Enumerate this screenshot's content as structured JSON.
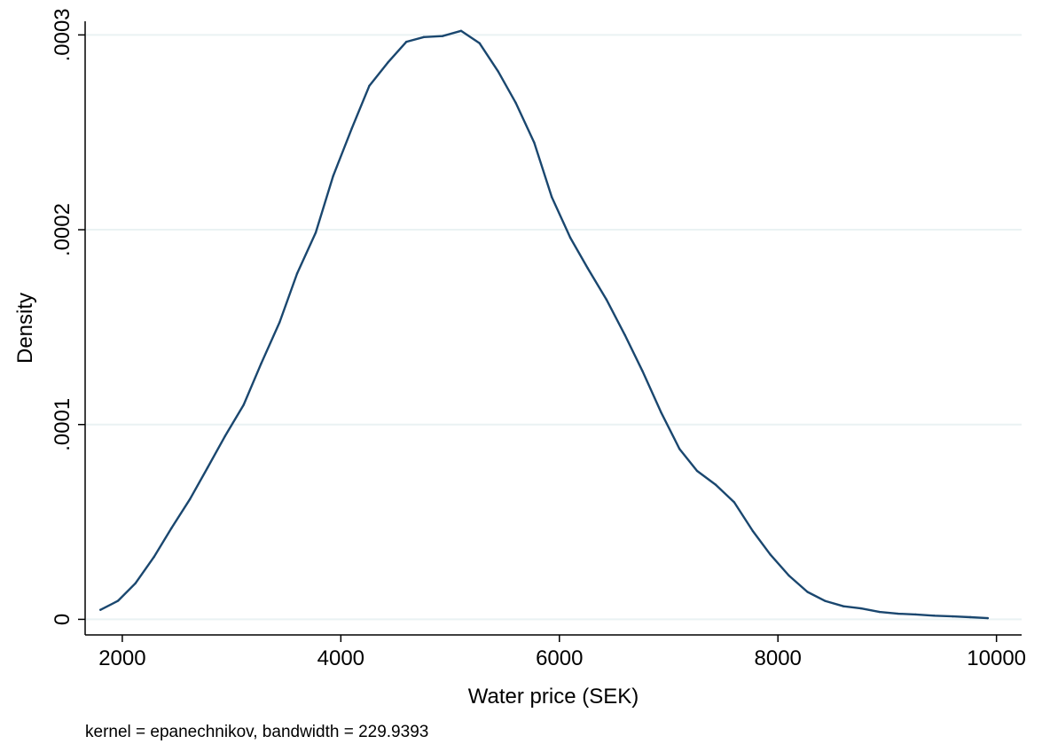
{
  "chart_data": {
    "type": "line",
    "title": "",
    "xlabel": "Water price (SEK)",
    "ylabel": "Density",
    "note": "kernel = epanechnikov, bandwidth = 229.9393",
    "xlim": [
      1660,
      10230
    ],
    "ylim": [
      -8e-06,
      0.000307
    ],
    "x_ticks": [
      2000,
      4000,
      6000,
      8000,
      10000
    ],
    "x_tick_labels": [
      "2000",
      "4000",
      "6000",
      "8000",
      "10000"
    ],
    "y_ticks": [
      0,
      0.0001,
      0.0002,
      0.0003
    ],
    "y_tick_labels": [
      "0",
      ".0001",
      ".0002",
      ".0003"
    ],
    "grid": "horizontal",
    "series": [
      {
        "color": "#1a476f",
        "x": [
          1800,
          1960,
          2120,
          2290,
          2450,
          2620,
          2780,
          2940,
          3110,
          3270,
          3440,
          3600,
          3770,
          3930,
          4100,
          4260,
          4430,
          4600,
          4760,
          4930,
          5100,
          5270,
          5440,
          5600,
          5770,
          5930,
          6100,
          6260,
          6430,
          6600,
          6760,
          6930,
          7100,
          7260,
          7430,
          7600,
          7770,
          7930,
          8100,
          8270,
          8430,
          8600,
          8760,
          8930,
          9100,
          9260,
          9430,
          9600,
          9760,
          9920
        ],
        "y": [
          4.9e-06,
          9.5e-06,
          1.85e-05,
          3.2e-05,
          4.68e-05,
          6.18e-05,
          7.78e-05,
          9.4e-05,
          0.0001101,
          0.0001312,
          0.0001525,
          0.0001775,
          0.0001985,
          0.0002276,
          0.000252,
          0.0002738,
          0.0002858,
          0.0002965,
          0.0002989,
          0.0002994,
          0.0003021,
          0.0002957,
          0.0002812,
          0.0002652,
          0.0002447,
          0.0002168,
          0.0001959,
          0.0001802,
          0.0001642,
          0.0001459,
          0.0001275,
          0.0001063,
          8.74e-05,
          7.62e-05,
          6.91e-05,
          6.01e-05,
          4.53e-05,
          3.33e-05,
          2.25e-05,
          1.41e-05,
          9.5e-06,
          6.7e-06,
          5.6e-06,
          3.8e-06,
          2.9e-06,
          2.5e-06,
          1.9e-06,
          1.5e-06,
          1.1e-06,
          6e-07
        ]
      }
    ]
  }
}
